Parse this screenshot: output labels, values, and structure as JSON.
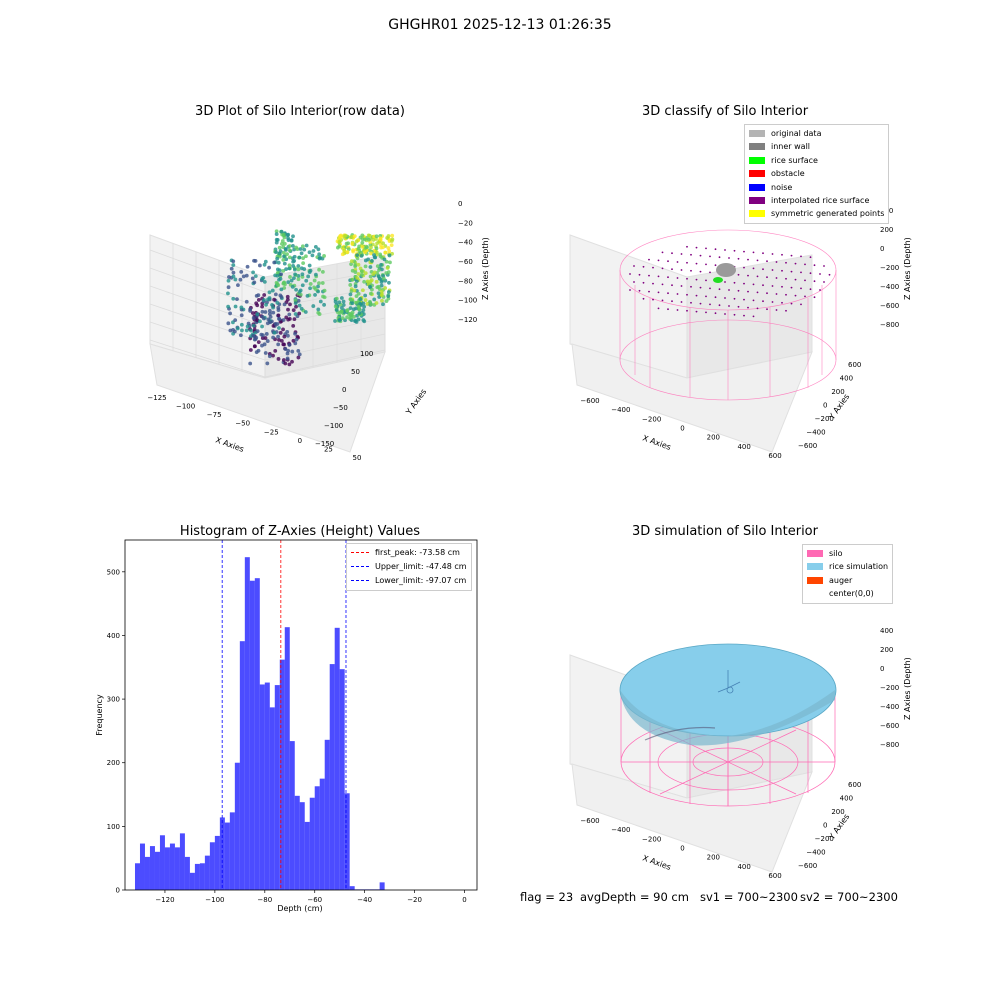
{
  "suptitle": "GHGHR01 2025-12-13 01:26:35",
  "panels": {
    "raw": {
      "title": "3D Plot of Silo Interior(row data)",
      "xlabel": "X Axies",
      "ylabel": "Y Axies",
      "zlabel": "Z Axies (Depth)",
      "xticks": [
        "-125",
        "-100",
        "-75",
        "-50",
        "-25",
        "0",
        "25",
        "50"
      ],
      "yticks": [
        "100",
        "50",
        "0",
        "-50",
        "-100",
        "-150"
      ],
      "zticks": [
        "0",
        "-20",
        "-40",
        "-60",
        "-80",
        "-100",
        "-120"
      ]
    },
    "classify": {
      "title": "3D classify of Silo Interior",
      "xlabel": "X Axies",
      "ylabel": "Y Axies",
      "zlabel": "Z Axies (Depth)",
      "xticks": [
        "-600",
        "-400",
        "-200",
        "0",
        "200",
        "400",
        "600"
      ],
      "yticks": [
        "600",
        "400",
        "200",
        "0",
        "-200",
        "-400",
        "-600"
      ],
      "zticks": [
        "400",
        "200",
        "0",
        "-200",
        "-400",
        "-600",
        "-800"
      ],
      "legend": [
        {
          "label": "original data",
          "color": "#b4b4b4"
        },
        {
          "label": "inner wall",
          "color": "#808080"
        },
        {
          "label": "rice surface",
          "color": "#00ff00"
        },
        {
          "label": "obstacle",
          "color": "#ff0000"
        },
        {
          "label": "noise",
          "color": "#0000ff"
        },
        {
          "label": "interpolated rice surface",
          "color": "#800080"
        },
        {
          "label": "symmetric generated points",
          "color": "#ffff00"
        }
      ]
    },
    "simulation": {
      "title": "3D simulation of Silo Interior",
      "xlabel": "X Axies",
      "ylabel": "Y Axies",
      "zlabel": "Z Axies (Depth)",
      "xticks": [
        "-600",
        "-400",
        "-200",
        "0",
        "200",
        "400",
        "600"
      ],
      "yticks": [
        "600",
        "400",
        "200",
        "0",
        "-200",
        "-400",
        "-600"
      ],
      "zticks": [
        "400",
        "200",
        "0",
        "-200",
        "-400",
        "-600",
        "-800"
      ],
      "legend": [
        {
          "label": "silo",
          "color": "#ff69b4"
        },
        {
          "label": "rice simulation",
          "color": "#87ceeb"
        },
        {
          "label": "auger",
          "color": "#ff4500"
        },
        {
          "label": "center(0,0)",
          "color": ""
        }
      ]
    }
  },
  "chart_data": {
    "type": "bar",
    "title": "Histogram of Z-Axies (Height) Values",
    "xlabel": "Depth (cm)",
    "ylabel": "Frequency",
    "xlim": [
      -136,
      5
    ],
    "ylim": [
      0,
      550
    ],
    "xticks": [
      -120,
      -100,
      -80,
      -60,
      -40,
      -20,
      0
    ],
    "yticks": [
      0,
      100,
      200,
      300,
      400,
      500
    ],
    "bar_color": "#0000ff",
    "bin_start": -132,
    "bin_width": 2,
    "values": [
      42,
      73,
      52,
      69,
      60,
      86,
      67,
      73,
      67,
      89,
      52,
      27,
      41,
      42,
      54,
      75,
      85,
      114,
      106,
      122,
      200,
      391,
      523,
      486,
      490,
      323,
      326,
      287,
      322,
      362,
      413,
      234,
      148,
      138,
      107,
      145,
      163,
      175,
      236,
      355,
      412,
      347,
      152,
      6,
      1,
      1,
      1,
      1,
      1,
      12
    ],
    "lines": [
      {
        "label": "first_peak: -73.58 cm",
        "x": -73.58,
        "color": "#ff0000"
      },
      {
        "label": "Upper_limit: -47.48 cm",
        "x": -47.48,
        "color": "#0000ff"
      },
      {
        "label": "Lower_limit: -97.07 cm",
        "x": -97.07,
        "color": "#0000ff"
      }
    ]
  },
  "footer": {
    "flag": "flag = 23",
    "avgdepth": "avgDepth = 90 cm",
    "sv1": "sv1 = 700~2300",
    "sv2": "sv2 = 700~2300"
  }
}
